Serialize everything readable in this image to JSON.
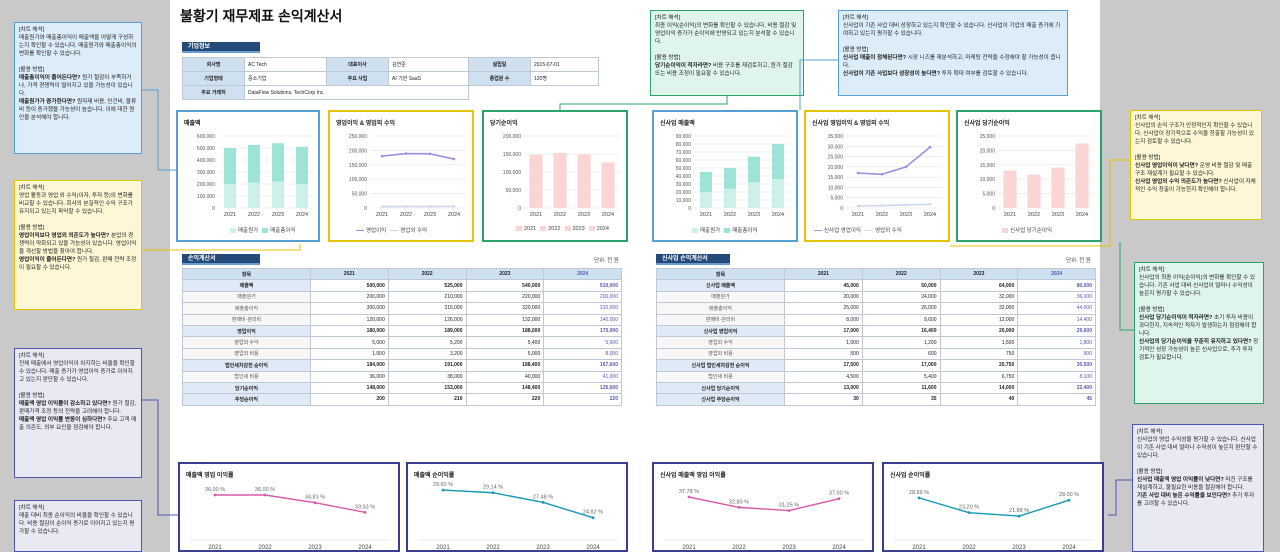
{
  "title": "불황기 재무제표 손익계산서",
  "company": {
    "header": "기업정보",
    "rows": [
      {
        "k1": "회사명",
        "v1": "AC Tech",
        "k2": "대표이사",
        "v2": "김연준",
        "k3": "설립일",
        "v3": "2015-07-01"
      },
      {
        "k1": "기업형태",
        "v1": "중소기업",
        "k2": "주요 사업",
        "v2": "AI 기반 SaaS",
        "k3": "종업원 수",
        "v3": "120명"
      },
      {
        "k1": "주요 거래처",
        "v1": "DataFlow Solutions, TechCorp Inc."
      }
    ]
  },
  "notes": [
    {
      "h": "[차트 해석]",
      "t": "매출원가와 매출총이익이 매출액을 어떻게 구성하는지 확인할 수 있습니다. 매출원가와 매출총이익의 변화를 확인할 수 있습니다.",
      "h2": "[활용 방법]",
      "b1": "매출총이익이 줄어든다면?",
      "t1": " 원가 절감이 부족하거나, 가격 경쟁력이 떨어지고 있을 가능성이 있습니다.",
      "b2": "매출원가가 증가한다면?",
      "t2": " 원자재 비용, 인건비, 물류비 등이 증가했을 가능성이 높습니다. 이에 대한 원인을 분석해야 합니다."
    },
    {
      "h": "[차트 해석]",
      "t": "영업 활동과 영업 외 수익(이자, 투자 등)의 변화를 비교할 수 있습니다. 회사의 본질적인 수익 구조가 유지되고 있는지 파악할 수 있습니다.",
      "h2": "[활용 방법]",
      "b1": "영업이익보다 영업외 의존도가 높다면?",
      "t1": " 본업의 경쟁력이 약화되고 있을 가능성이 있습니다. 영업이익을 개선할 방법을 찾아야 합니다.",
      "b2": "영업이익이 줄어든다면?",
      "t2": " 원가 절감, 판매 전략 조정이 필요할 수 있습니다."
    },
    {
      "h": "[차트 해석]",
      "t": "전체 매출에서 영업이익이 차지하는 비율을 확인할 수 있습니다. 매출 증가가 영업이익 증가로 이어지고 있는지 판단할 수 있습니다.",
      "h2": "[활용 방법]",
      "b1": "매출액 영업 이익률이 감소하고 있다면?",
      "t1": " 원가 절감, 판매가격 조정 등의 전략을 고려해야 합니다.",
      "b2": "매출액 영업 이익률 변동이 심하다면?",
      "t2": " 주요 고객 매출 의존도, 외부 요인을 점검해야 합니다."
    },
    {
      "h": "[차트 해석]",
      "t": "매출 대비 최종 순이익의 비율을 확인할 수 있습니다. 비용 절감이 순이익 증가로 이어지고 있는지 평가할 수 있습니다."
    },
    {
      "h": "[차트 해석]",
      "t": "최종 이익(순이익)의 변화를 확인할 수 있습니다. 비용 절감 및 영업이익 증가가 순이익에 반영되고 있는지 분석할 수 있습니다.",
      "h2": "[활용 방법]",
      "b1": "당기순이익이 적자라면?",
      "t1": " 비용 구조를 재검토하고, 원가 절감 또는 비용 조정이 필요할 수 있습니다."
    },
    {
      "h": "[차트 해석]",
      "t": "신사업이 기존 사업 대비 성장하고 있는지 확인할 수 있습니다. 신사업이 기업의 매출 증가에 기여하고 있는지 평가할 수 있습니다.",
      "h2": "[활용 방법]",
      "b1": "신사업 매출이 정체된다면?",
      "t1": " 시장 니즈를 재분석하고, 마케팅 전략을 수정해야 할 가능성이 큽니다.",
      "b2": "신사업이 기존 사업보다 성장성이 높다면?",
      "t2": " 투자 확대 여부를 검토할 수 있습니다."
    },
    {
      "h": "[차트 해석]",
      "t": "신사업의 손익 구조가 안정적인지 확인할 수 있습니다. 신사업이 장기적으로 수익을 창출할 가능성이 있는지 검토할 수 있습니다.",
      "h2": "[활용 방법]",
      "b1": "신사업 영업이익이 낮다면?",
      "t1": " 운영 비용 절감 및 매출 구조 재설계가 필요할 수 있습니다.",
      "b2": "신사업 영업외 수익 의존도가 높다면?",
      "t2": " 신사업이 자체적인 수익 창출이 가능한지 확인해야 합니다."
    },
    {
      "h": "[차트 해석]",
      "t": "신사업의 최종 이익(순이익)의 변화를 확인할 수 있습니다. 기존 사업 대비 신사업이 얼마나 수익성이 높은지 평가할 수 있습니다.",
      "h2": "[활용 방법]",
      "b1": "신사업 당기순이익이 적자라면?",
      "t1": " 초기 투자 비용이 과다한지, 지속적인 적자가 발생하는지 점검해야 합니다.",
      "b2": "신사업의 당기순이익을 꾸준히 유지하고 있다면?",
      "t2": " 장기적인 성장 가능성이 높은 신사업으로, 추가 투자 검토가 필요합니다."
    },
    {
      "h": "[차트 해석]",
      "t": "신사업의 영업 수익성을 평가할 수 있습니다. 신사업이 기존 사업 대비 얼마나 수익성이 높은지 판단할 수 있습니다.",
      "h2": "[활용 방법]",
      "b1": "신사업 매출액 영업 이익률이 낮다면?",
      "t1": " 마진 구조를 재설계하고, 불필요한 비용을 절감해야 합니다.",
      "b2": "기존 사업 대비 높은 수익률을 보인다면?",
      "t2": " 추가 투자를 고려할 수 있습니다."
    }
  ],
  "pl": {
    "header": "손익계산서",
    "unit": "단위: 천 원",
    "years": [
      "항목",
      "2021",
      "2022",
      "2023",
      "2024"
    ],
    "rows": [
      {
        "l": "매출액",
        "v": [
          "500,000",
          "525,000",
          "540,000",
          "510,000"
        ],
        "b": 1
      },
      {
        "l": "매출원가",
        "v": [
          "200,000",
          "210,000",
          "220,000",
          "200,000"
        ]
      },
      {
        "l": "매출총이익",
        "v": [
          "300,000",
          "315,000",
          "320,000",
          "310,000"
        ]
      },
      {
        "l": "판매비·관리비",
        "v": [
          "120,000",
          "126,000",
          "132,000",
          "140,000"
        ]
      },
      {
        "l": "영업이익",
        "v": [
          "180,000",
          "189,000",
          "188,000",
          "170,000"
        ],
        "b": 1
      },
      {
        "l": "영업외 수익",
        "v": [
          "5,000",
          "5,200",
          "5,400",
          "5,600"
        ]
      },
      {
        "l": "영업외 비용",
        "v": [
          "1,000",
          "3,200",
          "5,000",
          "8,000"
        ]
      },
      {
        "l": "법인세차감전 순이익",
        "v": [
          "184,000",
          "191,000",
          "188,400",
          "167,600"
        ],
        "b": 1
      },
      {
        "l": "법인세 비용",
        "v": [
          "36,000",
          "38,000",
          "40,000",
          "41,000"
        ]
      },
      {
        "l": "당기순이익",
        "v": [
          "148,000",
          "153,000",
          "148,400",
          "126,600"
        ],
        "b": 1
      },
      {
        "l": "주당순이익",
        "v": [
          "200",
          "210",
          "220",
          "220"
        ],
        "b": 1
      }
    ]
  },
  "npl": {
    "header": "신사업 손익계산서",
    "unit": "단위: 천 원",
    "years": [
      "항목",
      "2021",
      "2022",
      "2023",
      "2024"
    ],
    "rows": [
      {
        "l": "신사업 매출액",
        "v": [
          "45,000",
          "50,000",
          "64,000",
          "80,000"
        ],
        "b": 1
      },
      {
        "l": "매출원가",
        "v": [
          "20,000",
          "24,000",
          "32,000",
          "36,000"
        ]
      },
      {
        "l": "매출총이익",
        "v": [
          "25,000",
          "26,000",
          "32,000",
          "44,000"
        ]
      },
      {
        "l": "판매비·관리비",
        "v": [
          "8,000",
          "9,600",
          "12,000",
          "14,400"
        ]
      },
      {
        "l": "신사업 영업이익",
        "v": [
          "17,000",
          "16,400",
          "20,000",
          "29,600"
        ],
        "b": 1
      },
      {
        "l": "영업외 수익",
        "v": [
          "1,000",
          "1,200",
          "1,500",
          "1,800"
        ]
      },
      {
        "l": "영업외 비용",
        "v": [
          "500",
          "600",
          "750",
          "900"
        ]
      },
      {
        "l": "신사업 법인세차감전 순이익",
        "v": [
          "17,500",
          "17,000",
          "20,750",
          "30,500"
        ],
        "b": 1
      },
      {
        "l": "법인세 비용",
        "v": [
          "4,500",
          "5,400",
          "6,750",
          "8,100"
        ]
      },
      {
        "l": "신사업 당기순이익",
        "v": [
          "13,000",
          "11,600",
          "14,000",
          "22,400"
        ],
        "b": 1
      },
      {
        "l": "신사업 주당순이익",
        "v": [
          "30",
          "35",
          "40",
          "45"
        ],
        "b": 1
      }
    ]
  },
  "charts": {
    "sales": {
      "title": "매출액",
      "legend": [
        "매출원가",
        "매출총이익"
      ]
    },
    "op": {
      "title": "영업이익 & 영업외 수익",
      "legend": [
        "영업이익",
        "영업외 수익"
      ]
    },
    "net": {
      "title": "당기순이익",
      "legend": [
        "2021",
        "2022",
        "2023",
        "2024"
      ]
    },
    "nsales": {
      "title": "신사업 매출액",
      "legend": [
        "매출원가",
        "매출총이익"
      ]
    },
    "nop": {
      "title": "신사업 영업이익 & 영업외 수익",
      "legend": [
        "신사업 영업이익",
        "영업외 수익"
      ]
    },
    "nnet": {
      "title": "신사업 당기순이익",
      "legend": [
        "신사업 당기순이익"
      ]
    },
    "opm": {
      "title": "매출액 영업 이익률"
    },
    "npm": {
      "title": "매출액 순이익률"
    },
    "nopm": {
      "title": "신사업 매출액 영업 이익률"
    },
    "nnpm": {
      "title": "신사업 순이익률"
    }
  },
  "chart_data": [
    {
      "type": "bar",
      "title": "매출액",
      "categories": [
        "2021",
        "2022",
        "2023",
        "2024"
      ],
      "series": [
        {
          "name": "매출원가",
          "values": [
            200000,
            210000,
            220000,
            200000
          ]
        },
        {
          "name": "매출총이익",
          "values": [
            300000,
            315000,
            320000,
            310000
          ]
        }
      ],
      "ylim": [
        0,
        600000
      ],
      "yticks": [
        "0",
        "100,000",
        "200,000",
        "300,000",
        "400,000",
        "500,000",
        "600,000"
      ]
    },
    {
      "type": "line",
      "title": "영업이익 & 영업외 수익",
      "categories": [
        "2021",
        "2022",
        "2023",
        "2024"
      ],
      "series": [
        {
          "name": "영업이익",
          "values": [
            180000,
            189000,
            188000,
            170000
          ]
        },
        {
          "name": "영업외 수익",
          "values": [
            5000,
            5200,
            5400,
            5600
          ]
        }
      ],
      "ylim": [
        0,
        250000
      ],
      "yticks": [
        "0",
        "50,000",
        "100,000",
        "150,000",
        "200,000",
        "250,000"
      ]
    },
    {
      "type": "bar",
      "title": "당기순이익",
      "categories": [
        "2021",
        "2022",
        "2023",
        "2024"
      ],
      "values": [
        148000,
        153000,
        148400,
        126600
      ],
      "ylim": [
        0,
        200000
      ],
      "yticks": [
        "0",
        "50,000",
        "100,000",
        "150,000",
        "200,000"
      ]
    },
    {
      "type": "bar",
      "title": "신사업 매출액",
      "categories": [
        "2021",
        "2022",
        "2023",
        "2024"
      ],
      "series": [
        {
          "name": "매출원가",
          "values": [
            20000,
            24000,
            32000,
            36000
          ]
        },
        {
          "name": "매출총이익",
          "values": [
            25000,
            26000,
            32000,
            44000
          ]
        }
      ],
      "ylim": [
        0,
        90000
      ],
      "yticks": [
        "0",
        "10,000",
        "20,000",
        "30,000",
        "40,000",
        "50,000",
        "60,000",
        "70,000",
        "80,000",
        "90,000"
      ]
    },
    {
      "type": "line",
      "title": "신사업 영업이익 & 영업외 수익",
      "categories": [
        "2021",
        "2022",
        "2023",
        "2024"
      ],
      "series": [
        {
          "name": "신사업 영업이익",
          "values": [
            17000,
            16400,
            20000,
            29600
          ]
        },
        {
          "name": "영업외 수익",
          "values": [
            1000,
            1200,
            1500,
            1800
          ]
        }
      ],
      "ylim": [
        0,
        35000
      ],
      "yticks": [
        "0",
        "5,000",
        "10,000",
        "15,000",
        "20,000",
        "25,000",
        "30,000",
        "35,000"
      ]
    },
    {
      "type": "bar",
      "title": "신사업 당기순이익",
      "categories": [
        "2021",
        "2022",
        "2023",
        "2024"
      ],
      "values": [
        13000,
        11600,
        14000,
        22400
      ],
      "ylim": [
        0,
        25000
      ],
      "yticks": [
        "0",
        "5,000",
        "10,000",
        "15,000",
        "20,000",
        "25,000"
      ]
    },
    {
      "type": "line",
      "title": "매출액 영업 이익률",
      "categories": [
        "2021",
        "2022",
        "2023",
        "2024"
      ],
      "values": [
        36.0,
        36.0,
        34.81,
        33.33
      ],
      "labels": [
        "36.00 %",
        "36.00 %",
        "34.81 %",
        "33.33 %"
      ],
      "ylim": [
        30,
        38
      ]
    },
    {
      "type": "line",
      "title": "매출액 순이익률",
      "categories": [
        "2021",
        "2022",
        "2023",
        "2024"
      ],
      "values": [
        29.6,
        29.14,
        27.48,
        24.82
      ],
      "labels": [
        "29.60 %",
        "29.14 %",
        "27.48 %",
        "24.82 %"
      ],
      "ylim": [
        22,
        31
      ]
    },
    {
      "type": "line",
      "title": "신사업 매출액 영업 이익률",
      "categories": [
        "2021",
        "2022",
        "2023",
        "2024"
      ],
      "values": [
        37.78,
        32.8,
        31.25,
        37.0
      ],
      "labels": [
        "37.78 %",
        "32.80 %",
        "31.25 %",
        "37.00 %"
      ],
      "ylim": [
        20,
        45
      ]
    },
    {
      "type": "line",
      "title": "신사업 순이익률",
      "categories": [
        "2021",
        "2022",
        "2023",
        "2024"
      ],
      "values": [
        28.89,
        23.2,
        21.88,
        28.0
      ],
      "labels": [
        "28.89 %",
        "23.20 %",
        "21.88 %",
        "28.00 %"
      ],
      "ylim": [
        15,
        35
      ]
    }
  ],
  "colors": {
    "header": "#244a7a",
    "cost": "#cdf1ea",
    "gross": "#9de4d6",
    "op": "#a08fe0",
    "nonop": "#cfd8ef",
    "net": "#fbd5d5",
    "pink": "#d958a8",
    "teal": "#1598b4",
    "proj": "#5558b5"
  }
}
